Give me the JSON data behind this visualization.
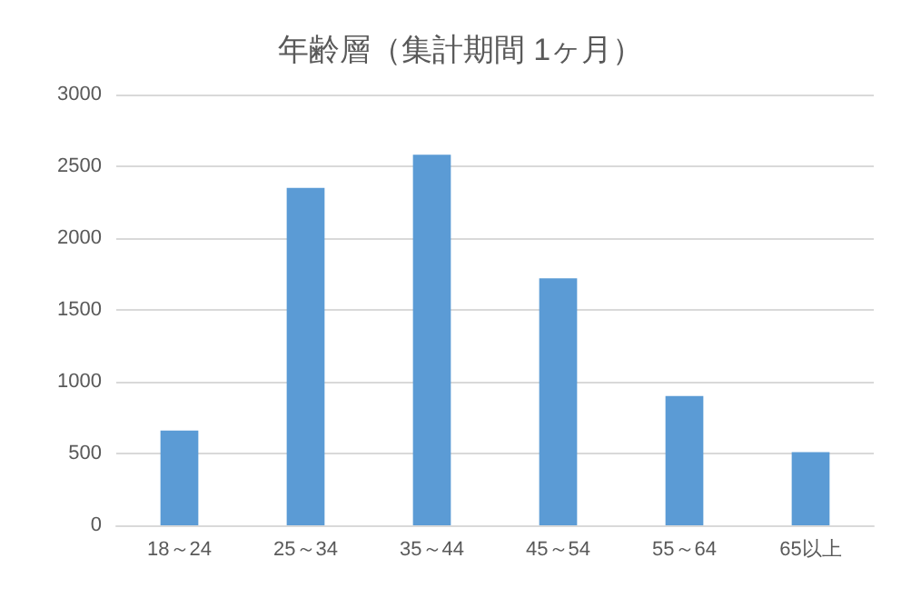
{
  "chart_data": {
    "type": "bar",
    "title": "年齢層（集計期間 1ヶ月）",
    "categories": [
      "18～24",
      "25～34",
      "35～44",
      "45～54",
      "55～64",
      "65以上"
    ],
    "values": [
      660,
      2350,
      2580,
      1720,
      900,
      510
    ],
    "color": "#5b9bd5",
    "ylim": [
      0,
      3000
    ],
    "yticks": [
      0,
      500,
      1000,
      1500,
      2000,
      2500,
      3000
    ],
    "grid": "y"
  }
}
